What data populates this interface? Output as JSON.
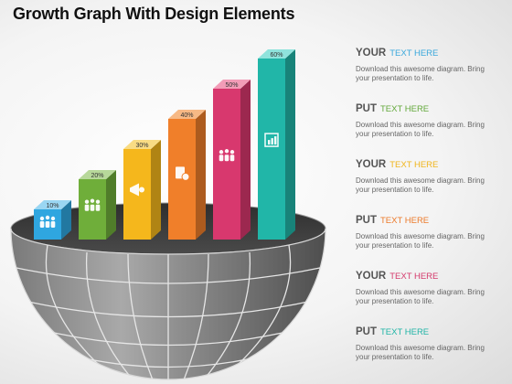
{
  "title": "Growth Graph With Design Elements",
  "chart_data": {
    "type": "bar",
    "categories": [
      "",
      "",
      "",
      "",
      "",
      ""
    ],
    "values": [
      10,
      20,
      30,
      40,
      50,
      60
    ],
    "value_labels": [
      "10%",
      "20%",
      "30%",
      "40%",
      "50%",
      "60%"
    ],
    "ylim": [
      0,
      60
    ],
    "colors": [
      "#2fa6e0",
      "#6fae3a",
      "#f5b71c",
      "#f07f2a",
      "#d8386e",
      "#21b6a8"
    ],
    "cap_colors": [
      "#9ad6f2",
      "#b7d89a",
      "#f9dc84",
      "#f7b985",
      "#f29cb7",
      "#8fe3dc"
    ],
    "icons": [
      "people-icon",
      "group-icon",
      "megaphone-icon",
      "report-icon",
      "team-icon",
      "growth-icon"
    ]
  },
  "labels": [
    {
      "keyword": "YOUR",
      "value": "TEXT HERE",
      "color": "#3aa8dc",
      "desc1": "Download this awesome diagram. Bring",
      "desc2": "your presentation to life."
    },
    {
      "keyword": "PUT",
      "value": "TEXT HERE",
      "color": "#62a83a",
      "desc1": "Download this awesome diagram. Bring",
      "desc2": "your presentation to life."
    },
    {
      "keyword": "YOUR",
      "value": "TEXT HERE",
      "color": "#f0b51c",
      "desc1": "Download this awesome diagram. Bring",
      "desc2": "your presentation to life."
    },
    {
      "keyword": "PUT",
      "value": "TEXT HERE",
      "color": "#ec7a2a",
      "desc1": "Download this awesome diagram. Bring",
      "desc2": "your presentation to life."
    },
    {
      "keyword": "YOUR",
      "value": "TEXT HERE",
      "color": "#d43a6c",
      "desc1": "Download this awesome diagram. Bring",
      "desc2": "your presentation to life."
    },
    {
      "keyword": "PUT",
      "value": "TEXT HERE",
      "color": "#1fb4a6",
      "desc1": "Download this awesome diagram. Bring",
      "desc2": "your presentation to life."
    }
  ]
}
